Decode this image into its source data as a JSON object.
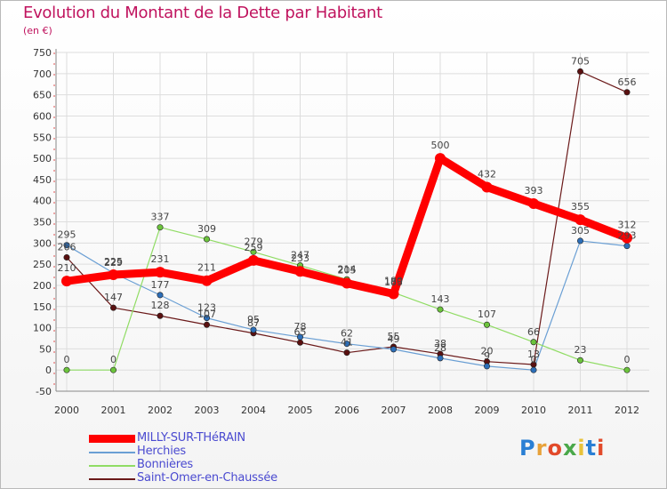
{
  "title": "Evolution du Montant de la Dette par Habitant",
  "subtitle": "(en €)",
  "logo_text": "Proxiti",
  "chart_data": {
    "type": "line",
    "x": [
      2000,
      2001,
      2002,
      2003,
      2004,
      2005,
      2006,
      2007,
      2008,
      2009,
      2010,
      2011,
      2012
    ],
    "ylim": [
      -50,
      750
    ],
    "yticks": [
      -50,
      0,
      50,
      100,
      150,
      200,
      250,
      300,
      350,
      400,
      450,
      500,
      550,
      600,
      650,
      700,
      750
    ],
    "grid": true,
    "legend_position": "bottom-left",
    "series": [
      {
        "name": "MILLY-SUR-THéRAIN",
        "color": "#ff0000",
        "values": [
          210,
          225,
          231,
          211,
          259,
          233,
          205,
          180,
          500,
          432,
          393,
          355,
          312
        ]
      },
      {
        "name": "Herchies",
        "color": "#6a9fd4",
        "values": [
          295,
          229,
          177,
          123,
          95,
          78,
          62,
          49,
          28,
          9,
          0,
          305,
          293
        ]
      },
      {
        "name": "Bonnières",
        "color": "#90dc64",
        "values": [
          0,
          0,
          337,
          309,
          279,
          247,
          214,
          183,
          143,
          107,
          66,
          23,
          0
        ]
      },
      {
        "name": "Saint-Omer-en-Chaussée",
        "color": "#6b1a1a",
        "values": [
          266,
          147,
          128,
          107,
          87,
          65,
          41,
          55,
          38,
          20,
          13,
          705,
          656
        ]
      }
    ]
  }
}
